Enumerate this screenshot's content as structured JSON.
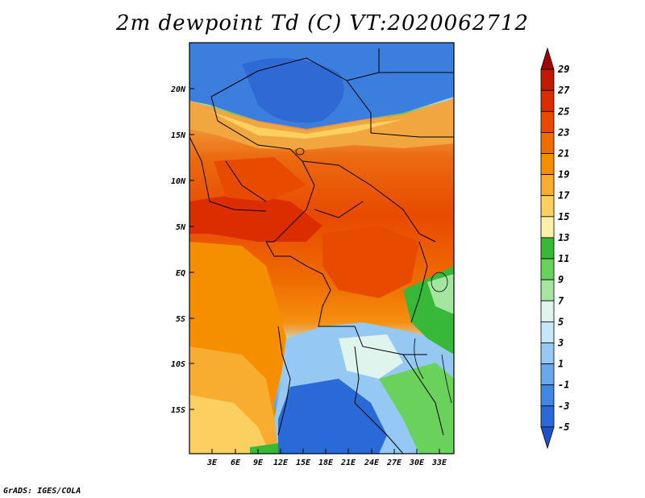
{
  "title": "2m dewpoint Td (C) VT:2020062712",
  "credit": "GrADS: IGES/COLA",
  "map": {
    "lat_labels": [
      "20N",
      "15N",
      "10N",
      "5N",
      "EQ",
      "5S",
      "10S",
      "15S"
    ],
    "lon_labels": [
      "3E",
      "6E",
      "9E",
      "12E",
      "15E",
      "18E",
      "21E",
      "24E",
      "27E",
      "30E",
      "33E"
    ]
  },
  "colorbar": {
    "labels": [
      "29",
      "27",
      "25",
      "23",
      "21",
      "19",
      "17",
      "15",
      "13",
      "11",
      "9",
      "7",
      "5",
      "3",
      "1",
      "-1",
      "-3",
      "-5"
    ],
    "colors": [
      "#a00000",
      "#c21a00",
      "#dc2d00",
      "#e84a00",
      "#ef6c00",
      "#f58f00",
      "#f8ad30",
      "#fbd060",
      "#fdf0a8",
      "#38b838",
      "#6ad25c",
      "#a4e6a0",
      "#dff4ec",
      "#c8e6fa",
      "#96c8f4",
      "#6aa8ee",
      "#4088e2",
      "#2a6ad8",
      "#1e52c8"
    ]
  }
}
